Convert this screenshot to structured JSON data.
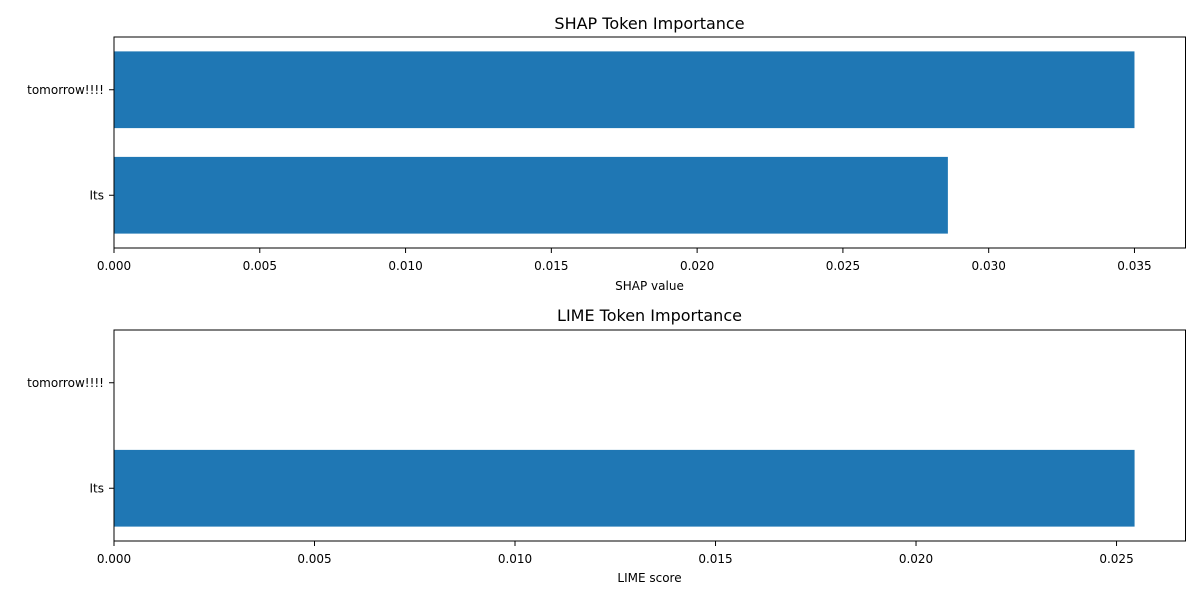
{
  "chart_data": [
    {
      "type": "bar",
      "orientation": "horizontal",
      "title": "SHAP Token Importance",
      "xlabel": "SHAP value",
      "ylabel": "",
      "categories": [
        "tomorrow!!!!",
        "Its"
      ],
      "values": [
        0.035,
        0.0286
      ],
      "xlim": [
        0,
        0.03675
      ],
      "xticks": [
        "0.000",
        "0.005",
        "0.010",
        "0.015",
        "0.020",
        "0.025",
        "0.030",
        "0.035"
      ],
      "grid": false,
      "legend": "none",
      "bar_color": "#1f77b4"
    },
    {
      "type": "bar",
      "orientation": "horizontal",
      "title": "LIME Token Importance",
      "xlabel": "LIME score",
      "ylabel": "",
      "categories": [
        "tomorrow!!!!",
        "Its"
      ],
      "values": [
        0.0,
        0.02545
      ],
      "xlim": [
        0,
        0.02672
      ],
      "xticks": [
        "0.000",
        "0.005",
        "0.010",
        "0.015",
        "0.020",
        "0.025"
      ],
      "grid": false,
      "legend": "none",
      "bar_color": "#1f77b4"
    }
  ]
}
